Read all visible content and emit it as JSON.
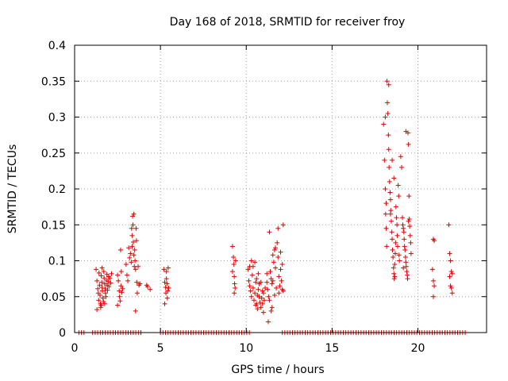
{
  "chart_data": {
    "type": "scatter",
    "title": "Day 168 of 2018, SRMTID for receiver froy",
    "xlabel": "GPS time / hours",
    "ylabel": "SRMTID / TECUs",
    "xlim": [
      0,
      24
    ],
    "ylim": [
      0,
      0.4
    ],
    "x_ticks": [
      0,
      5,
      10,
      15,
      20
    ],
    "y_ticks": [
      0,
      0.05,
      0.1,
      0.15,
      0.2,
      0.25,
      0.3,
      0.35,
      0.4
    ],
    "x_tick_labels": [
      "0",
      "5",
      "10",
      "15",
      "20"
    ],
    "y_tick_labels": [
      "0",
      "0.05",
      "0.1",
      "0.15",
      "0.2",
      "0.25",
      "0.3",
      "0.35",
      "0.4"
    ],
    "grid": true,
    "marker": "+",
    "series": [
      {
        "name": "SRMTID",
        "color": "#e00000",
        "points": [
          [
            1.25,
            0.088
          ],
          [
            1.3,
            0.072
          ],
          [
            1.35,
            0.061
          ],
          [
            1.38,
            0.055
          ],
          [
            1.4,
            0.045
          ],
          [
            1.42,
            0.083
          ],
          [
            1.45,
            0.066
          ],
          [
            1.48,
            0.052
          ],
          [
            1.5,
            0.04
          ],
          [
            1.52,
            0.035
          ],
          [
            1.55,
            0.079
          ],
          [
            1.58,
            0.07
          ],
          [
            1.6,
            0.063
          ],
          [
            1.62,
            0.058
          ],
          [
            1.65,
            0.048
          ],
          [
            1.68,
            0.043
          ],
          [
            1.7,
            0.085
          ],
          [
            1.72,
            0.076
          ],
          [
            1.75,
            0.068
          ],
          [
            1.78,
            0.061
          ],
          [
            1.8,
            0.055
          ],
          [
            1.82,
            0.05
          ],
          [
            1.85,
            0.073
          ],
          [
            1.88,
            0.081
          ],
          [
            1.9,
            0.066
          ],
          [
            1.92,
            0.059
          ],
          [
            1.95,
            0.071
          ],
          [
            1.98,
            0.078
          ],
          [
            2.0,
            0.064
          ],
          [
            2.05,
            0.076
          ],
          [
            2.1,
            0.069
          ],
          [
            2.15,
            0.082
          ],
          [
            1.55,
            0.038
          ],
          [
            1.75,
            0.04
          ],
          [
            1.3,
            0.032
          ],
          [
            1.6,
            0.09
          ],
          [
            2.5,
            0.08
          ],
          [
            2.55,
            0.072
          ],
          [
            2.6,
            0.058
          ],
          [
            2.62,
            0.05
          ],
          [
            2.65,
            0.044
          ],
          [
            2.7,
            0.065
          ],
          [
            2.72,
            0.085
          ],
          [
            2.75,
            0.056
          ],
          [
            2.5,
            0.038
          ],
          [
            2.68,
            0.115
          ],
          [
            2.8,
            0.061
          ],
          [
            3.0,
            0.095
          ],
          [
            3.05,
            0.08
          ],
          [
            3.1,
            0.072
          ],
          [
            3.15,
            0.118
          ],
          [
            3.2,
            0.104
          ],
          [
            3.25,
            0.11
          ],
          [
            3.3,
            0.098
          ],
          [
            3.32,
            0.145
          ],
          [
            3.35,
            0.135
          ],
          [
            3.38,
            0.162
          ],
          [
            3.4,
            0.15
          ],
          [
            3.42,
            0.126
          ],
          [
            3.45,
            0.108
          ],
          [
            3.48,
            0.092
          ],
          [
            3.5,
            0.115
          ],
          [
            3.52,
            0.1
          ],
          [
            3.55,
            0.088
          ],
          [
            3.58,
            0.145
          ],
          [
            3.6,
            0.128
          ],
          [
            3.62,
            0.07
          ],
          [
            3.65,
            0.055
          ],
          [
            3.7,
            0.092
          ],
          [
            3.75,
            0.066
          ],
          [
            3.8,
            0.068
          ],
          [
            3.55,
            0.03
          ],
          [
            3.45,
            0.165
          ],
          [
            3.35,
            0.12
          ],
          [
            4.2,
            0.066
          ],
          [
            4.25,
            0.064
          ],
          [
            4.4,
            0.06
          ],
          [
            5.2,
            0.088
          ],
          [
            5.25,
            0.07
          ],
          [
            5.3,
            0.063
          ],
          [
            5.32,
            0.055
          ],
          [
            5.35,
            0.085
          ],
          [
            5.38,
            0.068
          ],
          [
            5.4,
            0.048
          ],
          [
            5.42,
            0.058
          ],
          [
            5.45,
            0.09
          ],
          [
            5.48,
            0.062
          ],
          [
            5.25,
            0.04
          ],
          [
            5.35,
            0.075
          ],
          [
            9.2,
            0.12
          ],
          [
            9.25,
            0.105
          ],
          [
            9.28,
            0.095
          ],
          [
            9.3,
            0.078
          ],
          [
            9.32,
            0.068
          ],
          [
            9.35,
            0.062
          ],
          [
            9.38,
            0.1
          ],
          [
            9.2,
            0.085
          ],
          [
            9.3,
            0.055
          ],
          [
            10.1,
            0.088
          ],
          [
            10.15,
            0.072
          ],
          [
            10.2,
            0.065
          ],
          [
            10.25,
            0.058
          ],
          [
            10.3,
            0.05
          ],
          [
            10.35,
            0.08
          ],
          [
            10.4,
            0.062
          ],
          [
            10.45,
            0.045
          ],
          [
            10.5,
            0.055
          ],
          [
            10.55,
            0.07
          ],
          [
            10.6,
            0.04
          ],
          [
            10.65,
            0.033
          ],
          [
            10.7,
            0.06
          ],
          [
            10.75,
            0.05
          ],
          [
            10.8,
            0.042
          ],
          [
            10.85,
            0.035
          ],
          [
            10.9,
            0.048
          ],
          [
            10.95,
            0.058
          ],
          [
            11.0,
            0.028
          ],
          [
            11.05,
            0.045
          ],
          [
            11.1,
            0.062
          ],
          [
            10.3,
            0.1
          ],
          [
            10.4,
            0.092
          ],
          [
            10.5,
            0.098
          ],
          [
            10.6,
            0.075
          ],
          [
            10.7,
            0.082
          ],
          [
            10.75,
            0.068
          ],
          [
            10.85,
            0.07
          ],
          [
            10.95,
            0.04
          ],
          [
            10.2,
            0.092
          ],
          [
            10.55,
            0.038
          ],
          [
            10.65,
            0.052
          ],
          [
            11.0,
            0.055
          ],
          [
            11.2,
            0.07
          ],
          [
            11.25,
            0.06
          ],
          [
            11.3,
            0.05
          ],
          [
            11.35,
            0.045
          ],
          [
            11.4,
            0.085
          ],
          [
            11.45,
            0.075
          ],
          [
            11.5,
            0.068
          ],
          [
            11.55,
            0.108
          ],
          [
            11.6,
            0.098
          ],
          [
            11.65,
            0.115
          ],
          [
            11.7,
            0.09
          ],
          [
            11.75,
            0.062
          ],
          [
            11.8,
            0.125
          ],
          [
            11.85,
            0.105
          ],
          [
            11.9,
            0.078
          ],
          [
            11.95,
            0.065
          ],
          [
            12.0,
            0.088
          ],
          [
            12.05,
            0.072
          ],
          [
            12.1,
            0.06
          ],
          [
            12.15,
            0.058
          ],
          [
            11.35,
            0.14
          ],
          [
            11.28,
            0.015
          ],
          [
            11.85,
            0.145
          ],
          [
            12.15,
            0.15
          ],
          [
            11.5,
            0.035
          ],
          [
            11.65,
            0.052
          ],
          [
            11.2,
            0.082
          ],
          [
            11.45,
            0.03
          ],
          [
            11.7,
            0.118
          ],
          [
            12.0,
            0.112
          ],
          [
            12.1,
            0.095
          ],
          [
            11.55,
            0.072
          ],
          [
            11.9,
            0.055
          ],
          [
            18.0,
            0.29
          ],
          [
            18.05,
            0.24
          ],
          [
            18.1,
            0.2
          ],
          [
            18.12,
            0.165
          ],
          [
            18.15,
            0.145
          ],
          [
            18.18,
            0.12
          ],
          [
            18.2,
            0.35
          ],
          [
            18.22,
            0.32
          ],
          [
            18.25,
            0.305
          ],
          [
            18.28,
            0.275
          ],
          [
            18.3,
            0.255
          ],
          [
            18.32,
            0.23
          ],
          [
            18.35,
            0.21
          ],
          [
            18.38,
            0.195
          ],
          [
            18.4,
            0.185
          ],
          [
            18.42,
            0.17
          ],
          [
            18.45,
            0.155
          ],
          [
            18.48,
            0.14
          ],
          [
            18.5,
            0.13
          ],
          [
            18.52,
            0.115
          ],
          [
            18.55,
            0.105
          ],
          [
            18.58,
            0.09
          ],
          [
            18.6,
            0.082
          ],
          [
            18.62,
            0.075
          ],
          [
            18.65,
            0.095
          ],
          [
            18.68,
            0.11
          ],
          [
            18.7,
            0.125
          ],
          [
            18.72,
            0.175
          ],
          [
            18.75,
            0.16
          ],
          [
            18.78,
            0.15
          ],
          [
            18.8,
            0.135
          ],
          [
            18.82,
            0.12
          ],
          [
            18.85,
            0.205
          ],
          [
            18.88,
            0.19
          ],
          [
            18.9,
            0.108
          ],
          [
            18.92,
            0.1
          ],
          [
            18.3,
            0.345
          ],
          [
            18.1,
            0.3
          ],
          [
            18.5,
            0.24
          ],
          [
            18.6,
            0.215
          ],
          [
            18.15,
            0.18
          ],
          [
            18.4,
            0.165
          ],
          [
            18.65,
            0.078
          ],
          [
            19.0,
            0.245
          ],
          [
            19.05,
            0.23
          ],
          [
            19.1,
            0.16
          ],
          [
            19.12,
            0.15
          ],
          [
            19.15,
            0.145
          ],
          [
            19.18,
            0.14
          ],
          [
            19.2,
            0.13
          ],
          [
            19.22,
            0.12
          ],
          [
            19.25,
            0.115
          ],
          [
            19.28,
            0.105
          ],
          [
            19.3,
            0.098
          ],
          [
            19.32,
            0.092
          ],
          [
            19.35,
            0.085
          ],
          [
            19.38,
            0.08
          ],
          [
            19.4,
            0.075
          ],
          [
            19.42,
            0.278
          ],
          [
            19.45,
            0.262
          ],
          [
            19.48,
            0.19
          ],
          [
            19.5,
            0.158
          ],
          [
            19.52,
            0.148
          ],
          [
            19.55,
            0.135
          ],
          [
            19.58,
            0.125
          ],
          [
            19.6,
            0.11
          ],
          [
            19.3,
            0.28
          ],
          [
            19.15,
            0.09
          ],
          [
            19.45,
            0.155
          ],
          [
            20.9,
            0.13
          ],
          [
            20.95,
            0.128
          ],
          [
            20.85,
            0.088
          ],
          [
            20.9,
            0.072
          ],
          [
            20.95,
            0.065
          ],
          [
            20.9,
            0.05
          ],
          [
            21.8,
            0.15
          ],
          [
            21.85,
            0.11
          ],
          [
            21.9,
            0.1
          ],
          [
            21.95,
            0.085
          ],
          [
            22.0,
            0.082
          ],
          [
            21.85,
            0.078
          ],
          [
            21.9,
            0.065
          ],
          [
            21.95,
            0.062
          ],
          [
            22.0,
            0.055
          ]
        ],
        "zero_ranges": [
          [
            0.25,
            0.55
          ],
          [
            1.05,
            4.0
          ],
          [
            5.0,
            10.3
          ],
          [
            12.1,
            22.8
          ]
        ]
      }
    ]
  }
}
